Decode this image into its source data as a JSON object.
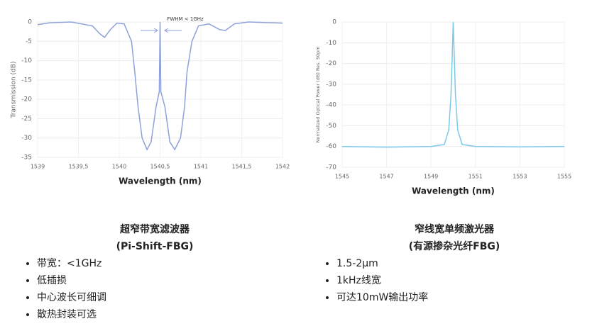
{
  "chart_data": [
    {
      "type": "line",
      "ylabel": "Transmission (dB)",
      "xlabel": "Wavelength (nm)",
      "annotation": "FWHM < 1GHz",
      "color": "#8ea2d9",
      "grid": true,
      "xlim": [
        1539,
        1542
      ],
      "ylim": [
        -35,
        0
      ],
      "xticks": [
        1539,
        {
          "value": 1539.5,
          "label": "1539,5"
        },
        1540,
        {
          "value": 1540.5,
          "label": "1540,5"
        },
        1541,
        {
          "value": 1541.5,
          "label": "1541,5"
        },
        1542
      ],
      "yticks": [
        0,
        -5,
        -10,
        -15,
        -20,
        -25,
        -30,
        -35
      ],
      "x": [
        1539,
        1539.15,
        1539.41,
        1539.67,
        1539.76,
        1539.82,
        1539.89,
        1539.97,
        1540.06,
        1540.15,
        1540.19,
        1540.23,
        1540.28,
        1540.34,
        1540.39,
        1540.45,
        1540.49,
        1540.5,
        1540.51,
        1540.56,
        1540.62,
        1540.68,
        1540.75,
        1540.8,
        1540.83,
        1540.89,
        1540.97,
        1541.1,
        1541.23,
        1541.3,
        1541.41,
        1541.58,
        1542
      ],
      "values": [
        -0.7,
        -0.2,
        0,
        -1,
        -3,
        -4,
        -2,
        -0.3,
        -0.5,
        -5,
        -13,
        -22,
        -30,
        -33,
        -31,
        -22,
        -18,
        0,
        -18,
        -22,
        -31,
        -33,
        -30,
        -22,
        -13,
        -5,
        -1,
        -0.5,
        -2,
        -2.2,
        -0.5,
        0,
        -0.3
      ]
    },
    {
      "type": "line",
      "ylabel": "Normalized Optical Power (dB) Res. 50pm",
      "xlabel": "Wavelength (nm)",
      "color": "#7cc9ea",
      "grid": true,
      "xlim": [
        1545,
        1555
      ],
      "ylim": [
        -70,
        0
      ],
      "xticks": [
        1545,
        1547,
        1549,
        1551,
        1553,
        1555
      ],
      "yticks": [
        0,
        -10,
        -20,
        -30,
        -40,
        -50,
        -60,
        -70
      ],
      "x": [
        1545,
        1547,
        1549,
        1549.6,
        1549.8,
        1549.9,
        1550,
        1550.1,
        1550.2,
        1550.4,
        1551,
        1553,
        1555
      ],
      "values": [
        -60,
        -60.3,
        -60,
        -59,
        -52,
        -35,
        0,
        -35,
        -52,
        -59,
        -60,
        -60.2,
        -60
      ]
    }
  ],
  "products": [
    {
      "title": "超窄带宽滤波器",
      "subtitle": "(Pi-Shift-FBG)",
      "features": [
        "带宽：<1GHz",
        "低插损",
        "中心波长可细调",
        "散热封装可选"
      ]
    },
    {
      "title": "窄线宽单频激光器",
      "subtitle": "(有源掺杂光纤FBG)",
      "features": [
        "1.5-2μm",
        "1kHz线宽",
        "可达10mW输出功率"
      ]
    }
  ]
}
